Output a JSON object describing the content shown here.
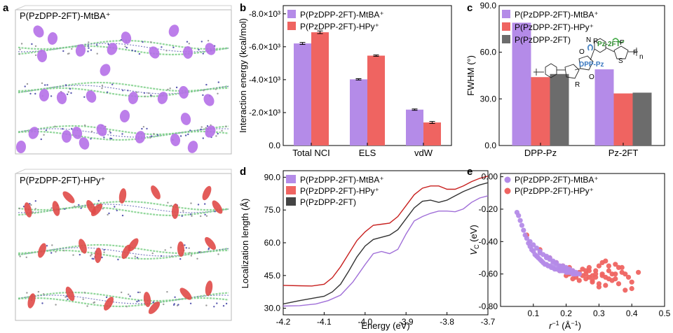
{
  "panel_labels": {
    "a": "a",
    "b": "b",
    "c": "c",
    "d": "d",
    "e": "e"
  },
  "colors": {
    "mtba": "#b48be8",
    "hpy": "#ef6461",
    "neutral": "#6c6c6c",
    "mtba_line": "#a06fd8",
    "hpy_line": "#c8201f",
    "neutral_line": "#333333",
    "chain": "#7fd089",
    "mtba_ion": "#b570e8",
    "hpy_ion": "#e04a48"
  },
  "panel_a": {
    "top_title": "P(PzDPP-2FT)-MtBA⁺",
    "bottom_title": "P(PzDPP-2FT)-HPy⁺"
  },
  "chart_data": [
    {
      "id": "b",
      "type": "bar",
      "categories": [
        "Total NCI",
        "ELS",
        "vdW"
      ],
      "series": [
        {
          "name": "P(PzDPP-2FT)-MtBA⁺",
          "values": [
            -6200,
            -4020,
            -2180
          ],
          "errors": [
            60,
            40,
            40
          ]
        },
        {
          "name": "P(PzDPP-2FT)-HPy⁺",
          "values": [
            -6880,
            -5460,
            -1400
          ],
          "errors": [
            80,
            40,
            60
          ]
        }
      ],
      "ylabel": "Interaction energy (kcal/mol)",
      "ylim": [
        0,
        -8500
      ],
      "yticks": [
        "0.0",
        "-2.0×10³",
        "-4.0×10³",
        "-6.0×10³",
        "-8.0×10³"
      ],
      "ytick_values": [
        0,
        -2000,
        -4000,
        -6000,
        -8000
      ],
      "legend": "top-left"
    },
    {
      "id": "c",
      "type": "bar",
      "categories": [
        "DPP-Pz",
        "Pz-2FT"
      ],
      "series": [
        {
          "name": "P(PzDPP-2FT)-MtBA⁺",
          "values": [
            79,
            49
          ]
        },
        {
          "name": "P(PzDPP-2FT)-HPy⁺",
          "values": [
            44,
            33.5
          ]
        },
        {
          "name": "P(PzDPP-2FT)",
          "values": [
            46,
            34
          ]
        }
      ],
      "ylabel": "FWHM (°)",
      "ylim": [
        0,
        90
      ],
      "yticks": [
        "0.0",
        "30.0",
        "60.0",
        "90.0"
      ],
      "ytick_values": [
        0,
        30,
        60,
        90
      ],
      "inset_labels": {
        "pz2ft": "Pz-2FT",
        "dpppz": "DPP-Pz",
        "n": "N",
        "r": "R",
        "o": "O",
        "f": "F",
        "s": "S",
        "sub_n": "n"
      }
    },
    {
      "id": "d",
      "type": "line",
      "xlabel": "Energy (eV)",
      "ylabel": "Localization length (Å)",
      "xlim": [
        -4.2,
        -3.7
      ],
      "ylim": [
        27,
        93
      ],
      "xticks": [
        "-4.2",
        "-4.1",
        "-4.0",
        "-3.9",
        "-3.8",
        "-3.7"
      ],
      "xtick_values": [
        -4.2,
        -4.1,
        -4.0,
        -3.9,
        -3.8,
        -3.7
      ],
      "yticks": [
        "30.0",
        "45.0",
        "60.0",
        "75.0",
        "90.0"
      ],
      "ytick_values": [
        30,
        45,
        60,
        75,
        90
      ],
      "series": [
        {
          "name": "P(PzDPP-2FT)-MtBA⁺",
          "x": [
            -4.2,
            -4.16,
            -4.12,
            -4.09,
            -4.06,
            -4.03,
            -4.0,
            -3.98,
            -3.96,
            -3.94,
            -3.92,
            -3.9,
            -3.88,
            -3.86,
            -3.84,
            -3.82,
            -3.8,
            -3.78,
            -3.76,
            -3.74,
            -3.72,
            -3.7
          ],
          "y": [
            31,
            31.2,
            32,
            33.5,
            36,
            42,
            50,
            55,
            56,
            55,
            57,
            64,
            70,
            72,
            73.5,
            74.5,
            74.5,
            74.2,
            75.5,
            78.5,
            80.5,
            81.5
          ]
        },
        {
          "name": "P(PzDPP-2FT)-HPy⁺",
          "x": [
            -4.2,
            -4.16,
            -4.13,
            -4.1,
            -4.08,
            -4.06,
            -4.04,
            -4.02,
            -4.0,
            -3.98,
            -3.96,
            -3.94,
            -3.92,
            -3.9,
            -3.88,
            -3.86,
            -3.84,
            -3.82,
            -3.8,
            -3.78,
            -3.76,
            -3.74,
            -3.72,
            -3.7
          ],
          "y": [
            40.5,
            40.3,
            40.2,
            41,
            44,
            49,
            55,
            61,
            65,
            68,
            68.5,
            69,
            72,
            77,
            82,
            85,
            86,
            86,
            84.5,
            84.5,
            86,
            88,
            89.5,
            90.5
          ]
        },
        {
          "name": "P(PzDPP-2FT)",
          "x": [
            -4.2,
            -4.16,
            -4.13,
            -4.1,
            -4.08,
            -4.06,
            -4.04,
            -4.02,
            -4.0,
            -3.98,
            -3.96,
            -3.94,
            -3.92,
            -3.9,
            -3.88,
            -3.86,
            -3.84,
            -3.82,
            -3.8,
            -3.78,
            -3.76,
            -3.74,
            -3.72,
            -3.7
          ],
          "y": [
            32,
            33.5,
            34.5,
            35.5,
            37.5,
            41,
            47,
            53.5,
            58.5,
            61.5,
            62.5,
            63.5,
            66,
            71,
            76,
            79,
            79.5,
            78.5,
            79.5,
            81.5,
            83.5,
            85,
            86.5,
            87.5
          ]
        }
      ]
    },
    {
      "id": "e",
      "type": "scatter",
      "xlabel": "r⁻¹ (Å⁻¹)",
      "ylabel": "VC (eV)",
      "ylabel_main": "V",
      "ylabel_sub": "C",
      "ylabel_unit": " (eV)",
      "xlabel_main": "r",
      "xlabel_sup": "−1",
      "xlabel_unit": " (Å",
      "xlabel_unit_sup": "−1",
      "xlabel_close": ")",
      "xlim": [
        0,
        0.5
      ],
      "ylim": [
        -0.8,
        0.02
      ],
      "xticks": [
        "0.1",
        "0.2",
        "0.3",
        "0.4",
        "0.5"
      ],
      "xtick_values": [
        0.1,
        0.2,
        0.3,
        0.4,
        0.5
      ],
      "yticks": [
        "0.00",
        "-0.20",
        "-0.40",
        "-0.60",
        "-0.80"
      ],
      "ytick_values": [
        0,
        -0.2,
        -0.4,
        -0.6,
        -0.8
      ],
      "series": [
        {
          "name": "P(PzDPP-2FT)-MtBA⁺",
          "x": [
            0.05,
            0.055,
            0.06,
            0.065,
            0.07,
            0.075,
            0.08,
            0.085,
            0.09,
            0.095,
            0.1,
            0.105,
            0.11,
            0.115,
            0.12,
            0.125,
            0.13,
            0.135,
            0.14,
            0.145,
            0.15,
            0.155,
            0.16,
            0.165,
            0.17,
            0.175,
            0.18,
            0.185,
            0.19,
            0.195,
            0.2,
            0.205,
            0.21,
            0.215,
            0.22,
            0.225,
            0.23,
            0.12,
            0.14,
            0.16,
            0.18,
            0.2,
            0.15,
            0.17,
            0.19,
            0.21,
            0.13,
            0.11,
            0.1,
            0.09,
            0.16,
            0.18,
            0.2,
            0.22,
            0.15,
            0.17,
            0.19,
            0.14,
            0.12,
            0.24,
            0.23
          ],
          "y": [
            -0.22,
            -0.24,
            -0.27,
            -0.3,
            -0.33,
            -0.36,
            -0.38,
            -0.41,
            -0.43,
            -0.45,
            -0.46,
            -0.48,
            -0.49,
            -0.5,
            -0.51,
            -0.52,
            -0.53,
            -0.54,
            -0.54,
            -0.55,
            -0.55,
            -0.56,
            -0.56,
            -0.57,
            -0.57,
            -0.57,
            -0.58,
            -0.58,
            -0.58,
            -0.58,
            -0.59,
            -0.59,
            -0.59,
            -0.59,
            -0.6,
            -0.6,
            -0.6,
            -0.46,
            -0.49,
            -0.52,
            -0.55,
            -0.56,
            -0.51,
            -0.54,
            -0.56,
            -0.57,
            -0.48,
            -0.44,
            -0.42,
            -0.4,
            -0.53,
            -0.55,
            -0.57,
            -0.58,
            -0.5,
            -0.53,
            -0.55,
            -0.5,
            -0.47,
            -0.6,
            -0.59
          ]
        },
        {
          "name": "P(PzDPP-2FT)-HPy⁺",
          "x": [
            0.08,
            0.12,
            0.15,
            0.17,
            0.19,
            0.2,
            0.21,
            0.22,
            0.23,
            0.24,
            0.25,
            0.26,
            0.27,
            0.28,
            0.29,
            0.3,
            0.31,
            0.32,
            0.33,
            0.34,
            0.35,
            0.36,
            0.37,
            0.38,
            0.39,
            0.4,
            0.42,
            0.26,
            0.28,
            0.3,
            0.32,
            0.34,
            0.27,
            0.29,
            0.31,
            0.33,
            0.35,
            0.25,
            0.23,
            0.21,
            0.18,
            0.36,
            0.38,
            0.3,
            0.32,
            0.24,
            0.22,
            0.35,
            0.31,
            0.29,
            0.27,
            0.33,
            0.37,
            0.4,
            0.28,
            0.26,
            0.2
          ],
          "y": [
            -0.36,
            -0.45,
            -0.5,
            -0.53,
            -0.55,
            -0.57,
            -0.56,
            -0.58,
            -0.6,
            -0.59,
            -0.57,
            -0.6,
            -0.58,
            -0.61,
            -0.62,
            -0.55,
            -0.6,
            -0.52,
            -0.58,
            -0.6,
            -0.63,
            -0.56,
            -0.59,
            -0.6,
            -0.62,
            -0.65,
            -0.59,
            -0.63,
            -0.64,
            -0.66,
            -0.62,
            -0.64,
            -0.56,
            -0.58,
            -0.53,
            -0.55,
            -0.6,
            -0.61,
            -0.62,
            -0.6,
            -0.58,
            -0.66,
            -0.7,
            -0.68,
            -0.67,
            -0.64,
            -0.63,
            -0.54,
            -0.61,
            -0.6,
            -0.62,
            -0.63,
            -0.56,
            -0.69,
            -0.65,
            -0.58,
            -0.61
          ]
        }
      ]
    }
  ]
}
